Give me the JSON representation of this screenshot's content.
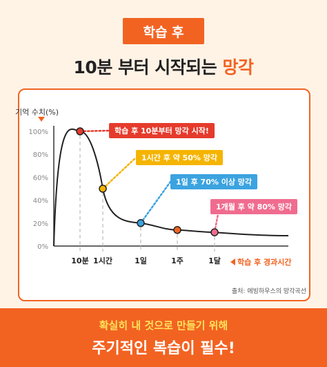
{
  "header": {
    "badge": "학습 후",
    "title_prefix": "10분 부터 ",
    "title_middle": "시작되는 ",
    "title_accent": "망각"
  },
  "chart_data": {
    "type": "line",
    "ylabel": "기억 수치(%)",
    "xlabel": "학습 후 경과시간",
    "ylim": [
      0,
      100
    ],
    "yticks": [
      "100%",
      "80%",
      "60%",
      "40%",
      "20%",
      "0%"
    ],
    "categories": [
      "10분",
      "1시간",
      "1일",
      "1주",
      "1달"
    ],
    "points": [
      {
        "x": "10분",
        "y": 100,
        "color": "#e53b2c",
        "label": "학습 후 10분부터 망각 시작!"
      },
      {
        "x": "1시간",
        "y": 50,
        "color": "#f5b400",
        "label": "1시간 후 약 50% 망각"
      },
      {
        "x": "1일",
        "y": 20,
        "color": "#3ba3e0",
        "label": "1일 후 70% 이상 망각"
      },
      {
        "x": "1주",
        "y": 14,
        "color": "#f26322",
        "label": ""
      },
      {
        "x": "1달",
        "y": 12,
        "color": "#f06c8f",
        "label": "1개월 후 약 80% 망각"
      }
    ]
  },
  "source": "출처: 에빙하우스의 망각곡선",
  "footer": {
    "sub": "확실히 내 것으로 만들기 위해",
    "main": "주기적인 복습이 필수!"
  }
}
